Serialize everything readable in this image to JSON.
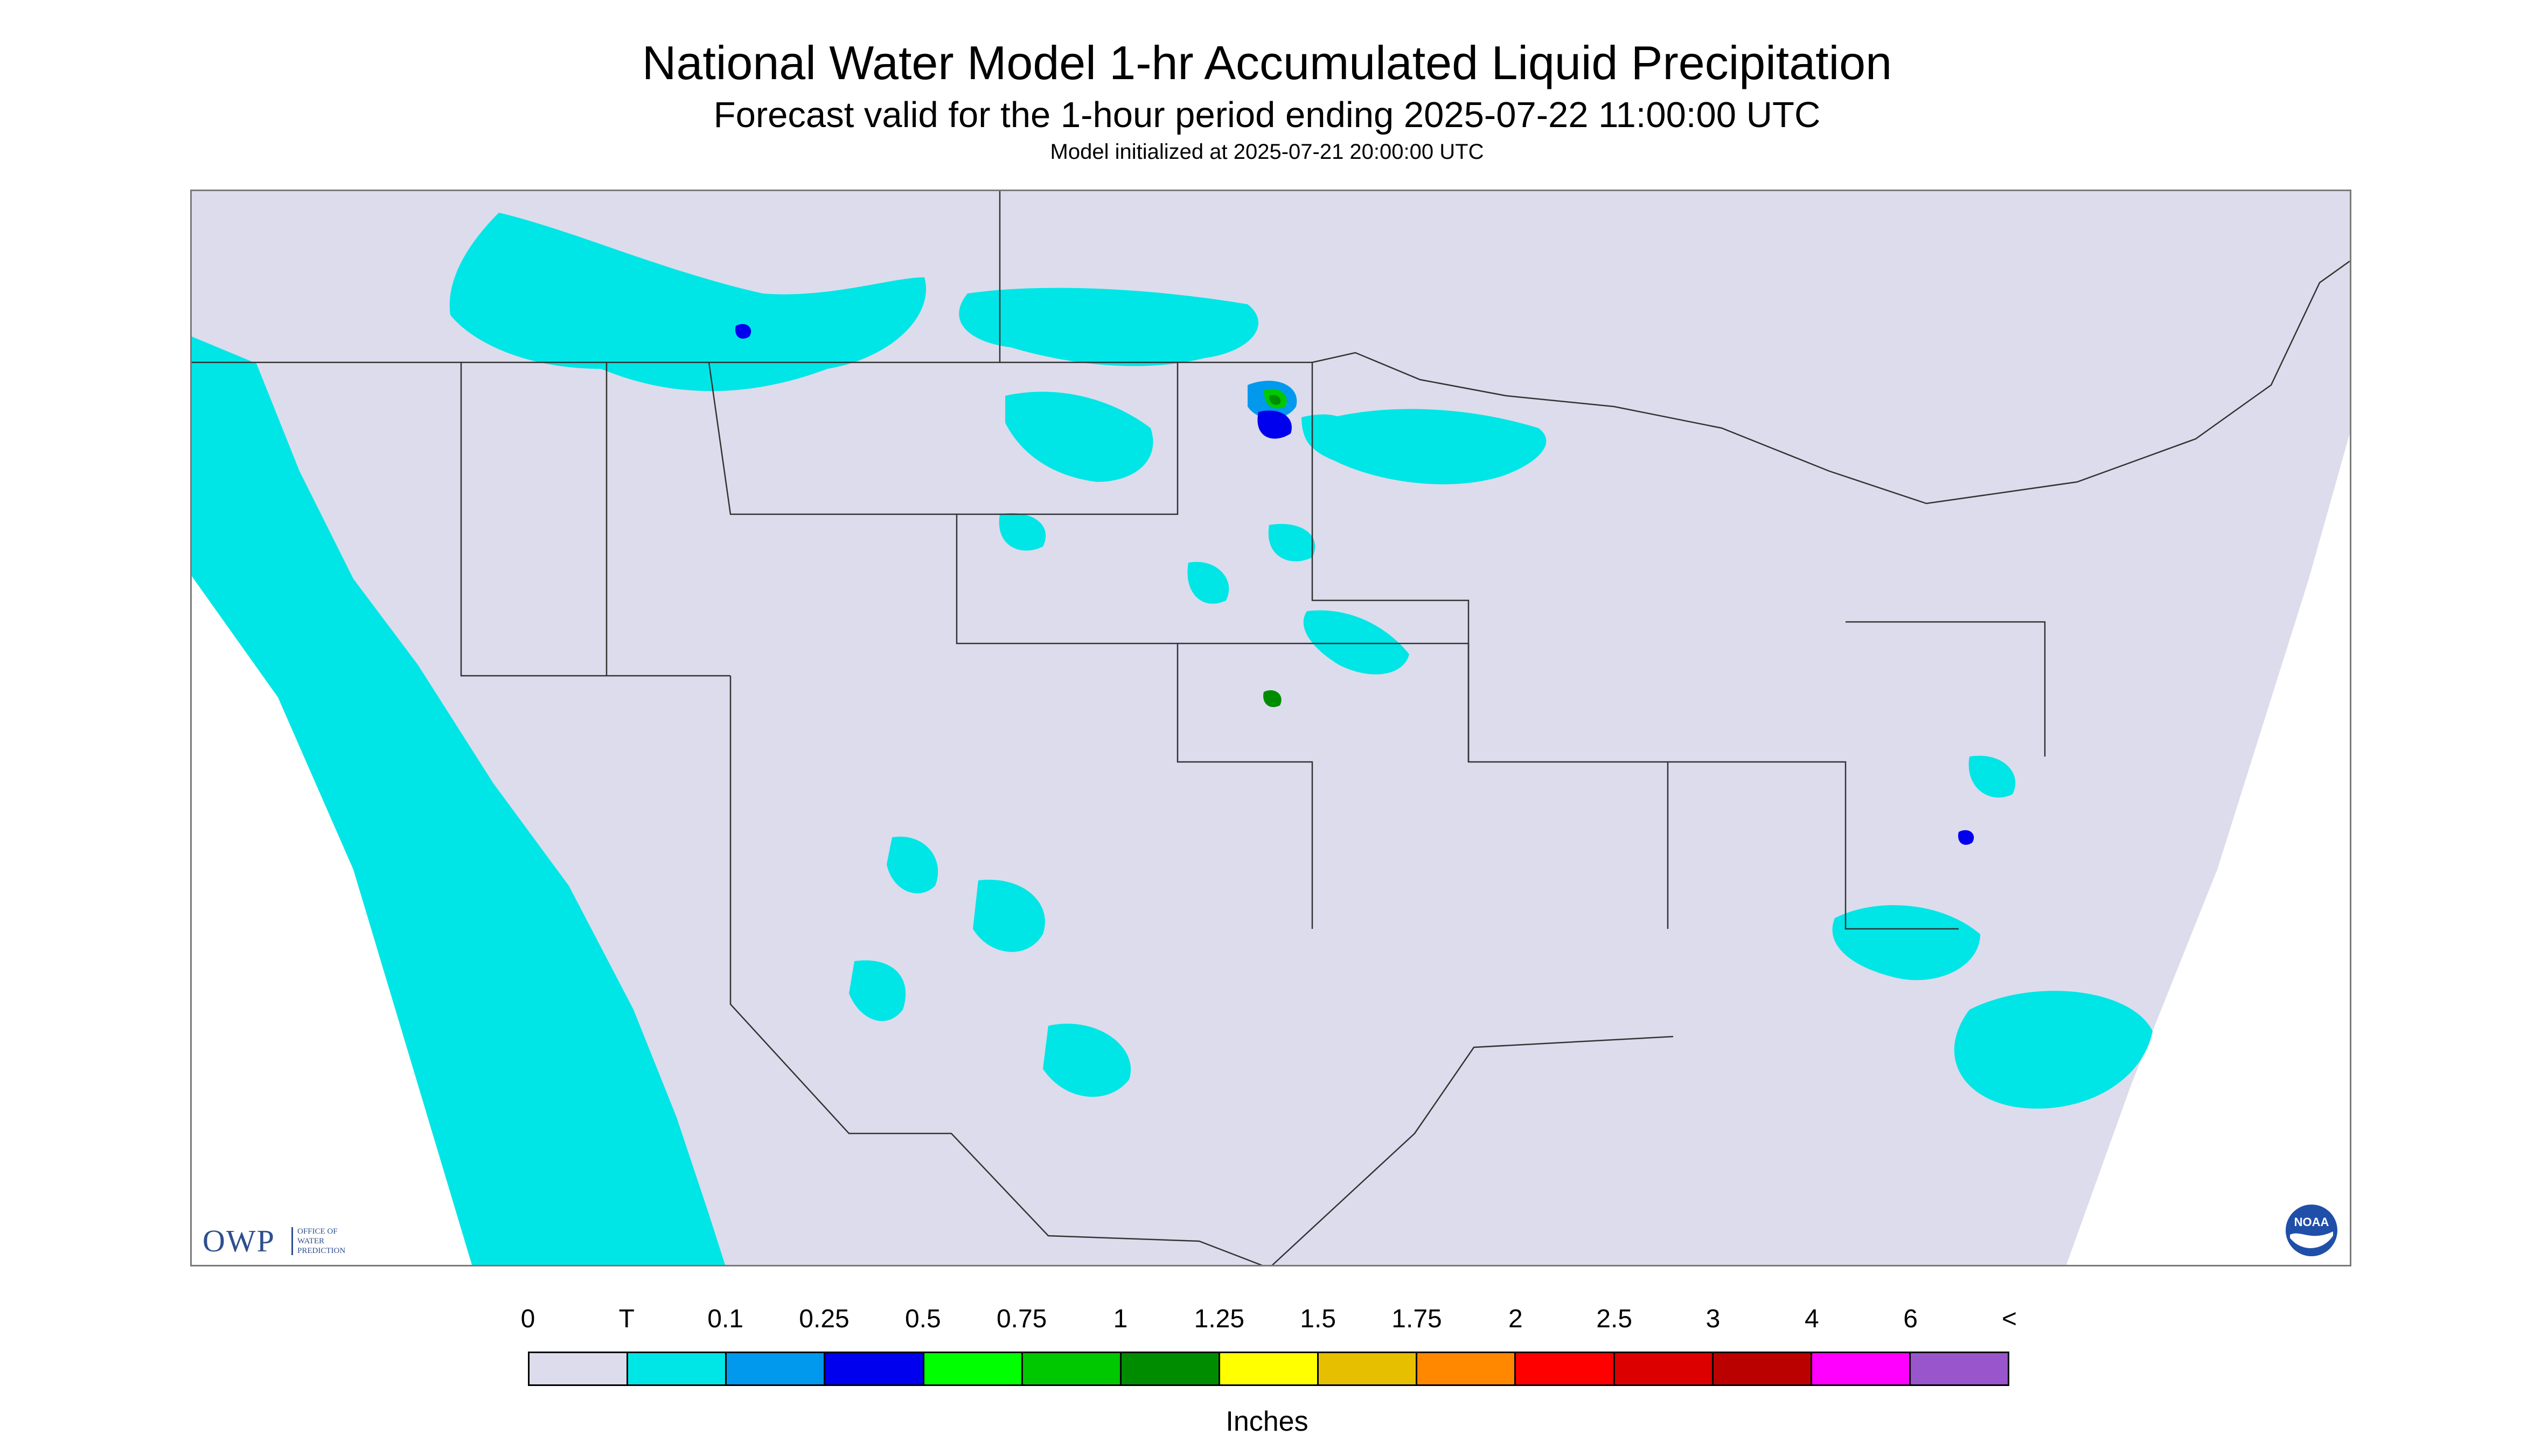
{
  "header": {
    "title": "National Water Model 1-hr Accumulated Liquid Precipitation",
    "subtitle": "Forecast valid for the 1-hour period ending 2025-07-22 11:00:00 UTC",
    "init_line": "Model initialized at 2025-07-21 20:00:00 UTC"
  },
  "map": {
    "background_color": "#dcdcec",
    "outside_domain_color": "#ffffff",
    "boundary_color": "#333333"
  },
  "legend": {
    "labels": [
      "0",
      "T",
      "0.1",
      "0.25",
      "0.5",
      "0.75",
      "1",
      "1.25",
      "1.5",
      "1.75",
      "2",
      "2.5",
      "3",
      "4",
      "6",
      "<"
    ],
    "colors": [
      "#dcdcec",
      "#00e6e6",
      "#0099ee",
      "#0000ee",
      "#00ff00",
      "#00c800",
      "#008c00",
      "#ffff00",
      "#e6c000",
      "#ff8800",
      "#ff0000",
      "#dd0000",
      "#bb0000",
      "#ff00ff",
      "#9955cc"
    ],
    "units": "Inches"
  },
  "logos": {
    "owp": {
      "letters": "OWP",
      "line1": "OFFICE OF",
      "line2": "WATER",
      "line3": "PREDICTION"
    },
    "noaa": {
      "text": "NOAA"
    }
  }
}
